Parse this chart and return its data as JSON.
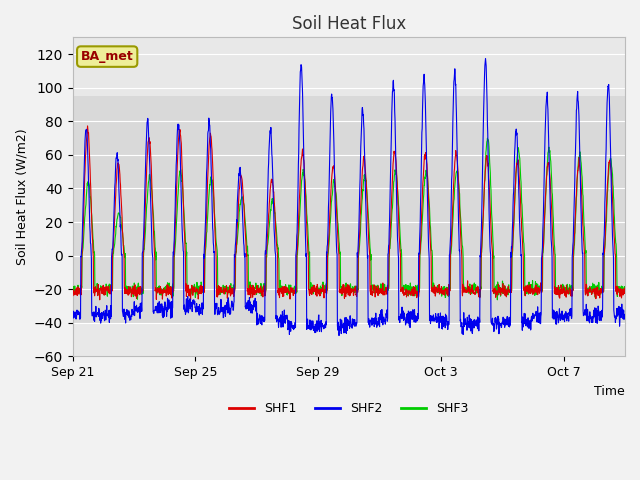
{
  "title": "Soil Heat Flux",
  "xlabel": "Time",
  "ylabel": "Soil Heat Flux (W/m2)",
  "ylim": [
    -60,
    130
  ],
  "yticks": [
    -60,
    -40,
    -20,
    0,
    20,
    40,
    60,
    80,
    100,
    120
  ],
  "xtick_labels": [
    "Sep 21",
    "Sep 25",
    "Sep 29",
    "Oct 3",
    "Oct 7"
  ],
  "xtick_positions": [
    0,
    4,
    8,
    12,
    16
  ],
  "shf1_color": "#dd0000",
  "shf2_color": "#0000ee",
  "shf3_color": "#00cc00",
  "line_width": 0.8,
  "plot_bg_color": "#e8e8e8",
  "fig_bg_color": "#f2f2f2",
  "hband_low": -40,
  "hband_high": 95,
  "legend_box_facecolor": "#eeee99",
  "legend_box_edgecolor": "#999900",
  "legend_text": "BA_met",
  "legend_text_color": "#990000",
  "num_days": 18,
  "days": 18
}
